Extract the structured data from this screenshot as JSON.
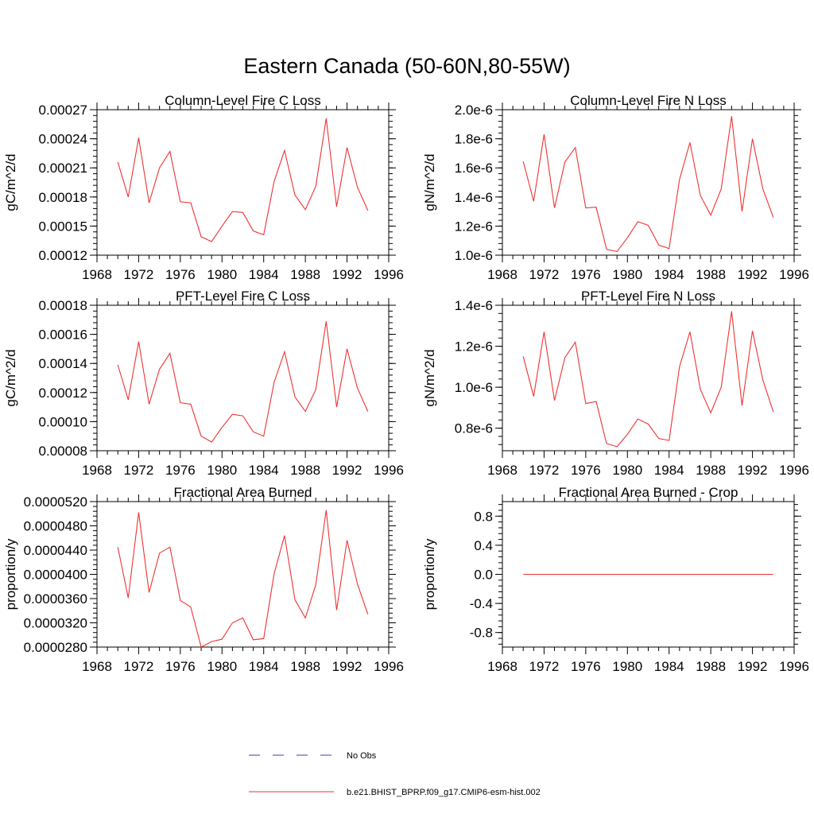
{
  "figure": {
    "title": "Eastern Canada (50-60N,80-55W)"
  },
  "legend": {
    "entries": [
      {
        "label": "No Obs",
        "style": "dashed",
        "color": "#3b3bb3"
      },
      {
        "label": "b.e21.BHIST_BPRP.f09_g17.CMIP6-esm-hist.002",
        "style": "solid",
        "color": "#ee3333"
      }
    ]
  },
  "chart_data": [
    {
      "type": "line",
      "title": "Column-Level Fire C Loss",
      "ylabel": "gC/m^2/d",
      "xlim": [
        1968,
        1996
      ],
      "ylim": [
        0.00012,
        0.00027
      ],
      "xticks": [
        1968,
        1972,
        1976,
        1980,
        1984,
        1988,
        1992,
        1996
      ],
      "xtick_labels": [
        "1968",
        "1972",
        "1976",
        "1980",
        "1984",
        "1988",
        "1992",
        "1996"
      ],
      "yticks": [
        0.00012,
        0.00015,
        0.00018,
        0.00021,
        0.00024,
        0.00027
      ],
      "ytick_labels": [
        "0.00012",
        "0.00015",
        "0.00018",
        "0.00021",
        "0.00024",
        "0.00027"
      ],
      "x": [
        1970,
        1971,
        1972,
        1973,
        1974,
        1975,
        1976,
        1977,
        1978,
        1979,
        1980,
        1981,
        1982,
        1983,
        1984,
        1985,
        1986,
        1987,
        1988,
        1989,
        1990,
        1991,
        1992,
        1993,
        1994
      ],
      "series": [
        {
          "color": "#ee3333",
          "values": [
            0.000216,
            0.00018,
            0.000241,
            0.000174,
            0.00021,
            0.000227,
            0.000175,
            0.000174,
            0.000139,
            0.000134,
            0.00015,
            0.000165,
            0.000164,
            0.000145,
            0.000141,
            0.000196,
            0.000228,
            0.000182,
            0.000167,
            0.000191,
            0.000261,
            0.00017,
            0.000231,
            0.00019,
            0.000166
          ]
        }
      ]
    },
    {
      "type": "line",
      "title": "Column-Level Fire N Loss",
      "ylabel": "gN/m^2/d",
      "xlim": [
        1968,
        1996
      ],
      "ylim": [
        1e-06,
        2e-06
      ],
      "xticks": [
        1968,
        1972,
        1976,
        1980,
        1984,
        1988,
        1992,
        1996
      ],
      "xtick_labels": [
        "1968",
        "1972",
        "1976",
        "1980",
        "1984",
        "1988",
        "1992",
        "1996"
      ],
      "yticks": [
        1e-06,
        1.2e-06,
        1.4e-06,
        1.6e-06,
        1.8e-06,
        2e-06
      ],
      "ytick_labels": [
        "1.0e-6",
        "1.2e-6",
        "1.4e-6",
        "1.6e-6",
        "1.8e-6",
        "2.0e-6"
      ],
      "x": [
        1970,
        1971,
        1972,
        1973,
        1974,
        1975,
        1976,
        1977,
        1978,
        1979,
        1980,
        1981,
        1982,
        1983,
        1984,
        1985,
        1986,
        1987,
        1988,
        1989,
        1990,
        1991,
        1992,
        1993,
        1994
      ],
      "series": [
        {
          "color": "#ee3333",
          "values": [
            1.645e-06,
            1.37e-06,
            1.83e-06,
            1.325e-06,
            1.64e-06,
            1.74e-06,
            1.325e-06,
            1.33e-06,
            1.04e-06,
            1.025e-06,
            1.12e-06,
            1.23e-06,
            1.205e-06,
            1.07e-06,
            1.045e-06,
            1.52e-06,
            1.775e-06,
            1.41e-06,
            1.275e-06,
            1.455e-06,
            1.955e-06,
            1.3e-06,
            1.8e-06,
            1.455e-06,
            1.26e-06
          ]
        }
      ]
    },
    {
      "type": "line",
      "title": "PFT-Level Fire C Loss",
      "ylabel": "gC/m^2/d",
      "xlim": [
        1968,
        1996
      ],
      "ylim": [
        8e-05,
        0.00018
      ],
      "xticks": [
        1968,
        1972,
        1976,
        1980,
        1984,
        1988,
        1992,
        1996
      ],
      "xtick_labels": [
        "1968",
        "1972",
        "1976",
        "1980",
        "1984",
        "1988",
        "1992",
        "1996"
      ],
      "yticks": [
        8e-05,
        0.0001,
        0.00012,
        0.00014,
        0.00016,
        0.00018
      ],
      "ytick_labels": [
        "0.00008",
        "0.00010",
        "0.00012",
        "0.00014",
        "0.00016",
        "0.00018"
      ],
      "x": [
        1970,
        1971,
        1972,
        1973,
        1974,
        1975,
        1976,
        1977,
        1978,
        1979,
        1980,
        1981,
        1982,
        1983,
        1984,
        1985,
        1986,
        1987,
        1988,
        1989,
        1990,
        1991,
        1992,
        1993,
        1994
      ],
      "series": [
        {
          "color": "#ee3333",
          "values": [
            0.000139,
            0.000115,
            0.000155,
            0.000112,
            0.000136,
            0.000147,
            0.000113,
            0.000112,
            9e-05,
            8.6e-05,
            9.6e-05,
            0.000105,
            0.000104,
            9.3e-05,
            9e-05,
            0.000127,
            0.000148,
            0.000117,
            0.000107,
            0.000122,
            0.000169,
            0.00011,
            0.00015,
            0.000123,
            0.000107
          ]
        }
      ]
    },
    {
      "type": "line",
      "title": "PFT-Level Fire N Loss",
      "ylabel": "gN/m^2/d",
      "xlim": [
        1968,
        1996
      ],
      "ylim": [
        6.9e-07,
        1.4e-06
      ],
      "xticks": [
        1968,
        1972,
        1976,
        1980,
        1984,
        1988,
        1992,
        1996
      ],
      "xtick_labels": [
        "1968",
        "1972",
        "1976",
        "1980",
        "1984",
        "1988",
        "1992",
        "1996"
      ],
      "yticks": [
        8e-07,
        1e-06,
        1.2e-06,
        1.4e-06
      ],
      "ytick_labels": [
        "0.8e-6",
        "1.0e-6",
        "1.2e-6",
        "1.4e-6"
      ],
      "x": [
        1970,
        1971,
        1972,
        1973,
        1974,
        1975,
        1976,
        1977,
        1978,
        1979,
        1980,
        1981,
        1982,
        1983,
        1984,
        1985,
        1986,
        1987,
        1988,
        1989,
        1990,
        1991,
        1992,
        1993,
        1994
      ],
      "series": [
        {
          "color": "#ee3333",
          "values": [
            1.15e-06,
            9.55e-07,
            1.27e-06,
            9.35e-07,
            1.145e-06,
            1.22e-06,
            9.2e-07,
            9.3e-07,
            7.25e-07,
            7.1e-07,
            7.7e-07,
            8.45e-07,
            8.2e-07,
            7.5e-07,
            7.4e-07,
            1.1e-06,
            1.27e-06,
            9.9e-07,
            8.75e-07,
            1e-06,
            1.37e-06,
            9.1e-07,
            1.275e-06,
            1.035e-06,
            8.8e-07
          ]
        }
      ]
    },
    {
      "type": "line",
      "title": "Fractional Area Burned",
      "ylabel": "proportion/y",
      "xlim": [
        1968,
        1996
      ],
      "ylim": [
        2.8e-05,
        5.2e-05
      ],
      "xticks": [
        1968,
        1972,
        1976,
        1980,
        1984,
        1988,
        1992,
        1996
      ],
      "xtick_labels": [
        "1968",
        "1972",
        "1976",
        "1980",
        "1984",
        "1988",
        "1992",
        "1996"
      ],
      "yticks": [
        2.8e-05,
        3.2e-05,
        3.6e-05,
        4e-05,
        4.4e-05,
        4.8e-05,
        5.2e-05
      ],
      "ytick_labels": [
        "0.0000280",
        "0.0000320",
        "0.0000360",
        "0.0000400",
        "0.0000440",
        "0.0000480",
        "0.0000520"
      ],
      "x": [
        1970,
        1971,
        1972,
        1973,
        1974,
        1975,
        1976,
        1977,
        1978,
        1979,
        1980,
        1981,
        1982,
        1983,
        1984,
        1985,
        1986,
        1987,
        1988,
        1989,
        1990,
        1991,
        1992,
        1993,
        1994
      ],
      "series": [
        {
          "color": "#ee3333",
          "values": [
            4.45e-05,
            3.61e-05,
            5.02e-05,
            3.7e-05,
            4.35e-05,
            4.45e-05,
            3.57e-05,
            3.46e-05,
            2.8e-05,
            2.89e-05,
            2.93e-05,
            3.2e-05,
            3.28e-05,
            2.92e-05,
            2.94e-05,
            4.01e-05,
            4.64e-05,
            3.58e-05,
            3.28e-05,
            3.83e-05,
            5.06e-05,
            3.41e-05,
            4.56e-05,
            3.84e-05,
            3.34e-05
          ]
        }
      ]
    },
    {
      "type": "line",
      "title": "Fractional Area Burned - Crop",
      "ylabel": "proportion/y",
      "xlim": [
        1968,
        1996
      ],
      "ylim": [
        -1.0,
        1.0
      ],
      "xticks": [
        1968,
        1972,
        1976,
        1980,
        1984,
        1988,
        1992,
        1996
      ],
      "xtick_labels": [
        "1968",
        "1972",
        "1976",
        "1980",
        "1984",
        "1988",
        "1992",
        "1996"
      ],
      "yticks": [
        -0.8,
        -0.4,
        0.0,
        0.4,
        0.8
      ],
      "ytick_labels": [
        "-0.8",
        "-0.4",
        "0.0",
        "0.4",
        "0.8"
      ],
      "x": [
        1970,
        1971,
        1972,
        1973,
        1974,
        1975,
        1976,
        1977,
        1978,
        1979,
        1980,
        1981,
        1982,
        1983,
        1984,
        1985,
        1986,
        1987,
        1988,
        1989,
        1990,
        1991,
        1992,
        1993,
        1994
      ],
      "series": [
        {
          "color": "#ee3333",
          "values": [
            0,
            0,
            0,
            0,
            0,
            0,
            0,
            0,
            0,
            0,
            0,
            0,
            0,
            0,
            0,
            0,
            0,
            0,
            0,
            0,
            0,
            0,
            0,
            0,
            0
          ]
        }
      ]
    }
  ]
}
